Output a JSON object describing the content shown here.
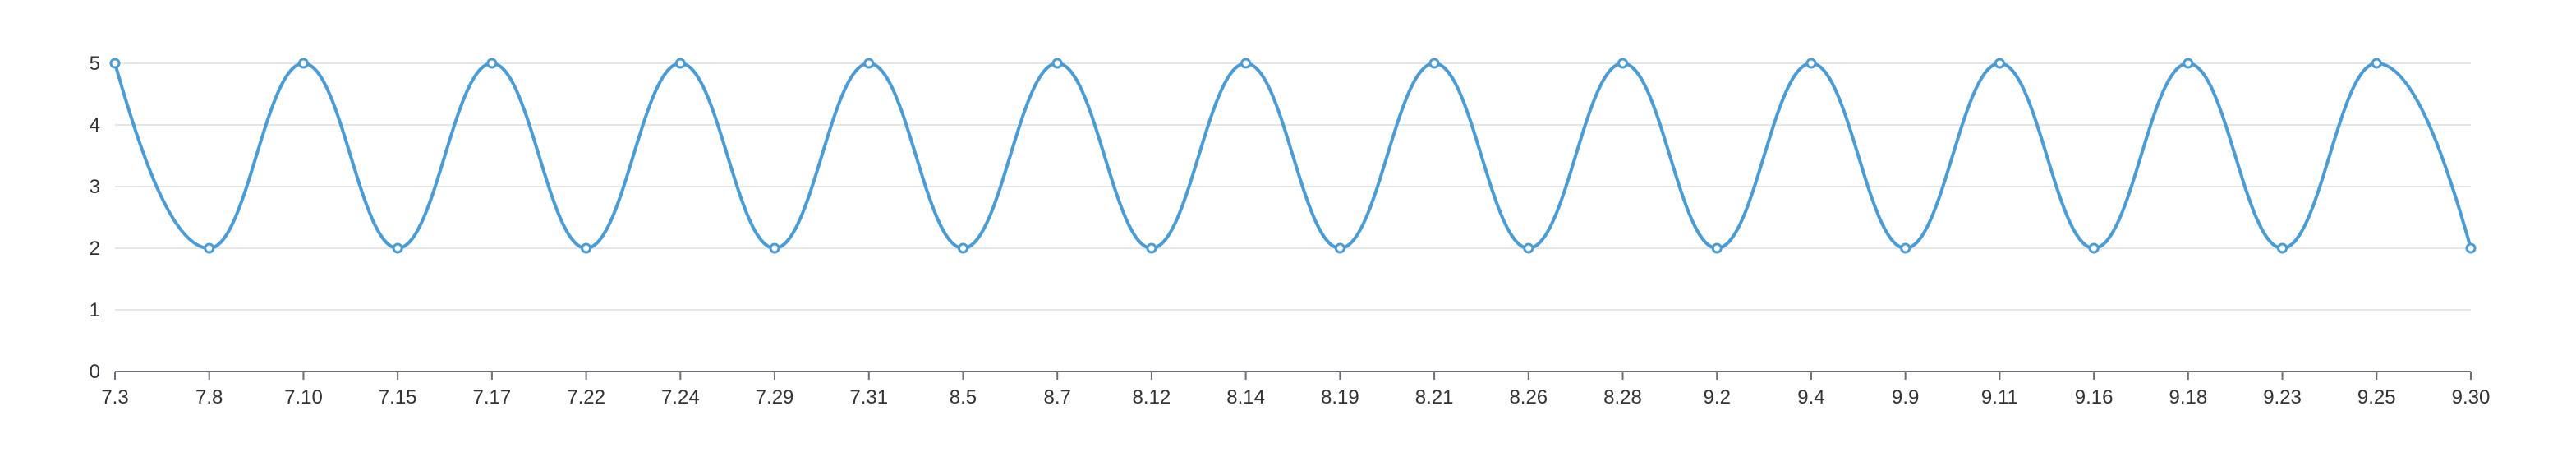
{
  "chart_data": {
    "type": "line",
    "smooth": true,
    "categories": [
      "7.3",
      "7.8",
      "7.10",
      "7.15",
      "7.17",
      "7.22",
      "7.24",
      "7.29",
      "7.31",
      "8.5",
      "8.7",
      "8.12",
      "8.14",
      "8.19",
      "8.21",
      "8.26",
      "8.28",
      "9.2",
      "9.4",
      "9.9",
      "9.11",
      "9.16",
      "9.18",
      "9.23",
      "9.25",
      "9.30"
    ],
    "series": [
      {
        "values": [
          5,
          2,
          5,
          2,
          5,
          2,
          5,
          2,
          5,
          2,
          5,
          2,
          5,
          2,
          5,
          2,
          5,
          2,
          5,
          2,
          5,
          2,
          5,
          2,
          5,
          2
        ],
        "color": "#4a9cd6"
      }
    ],
    "y_ticks": [
      "0",
      "1",
      "2",
      "3",
      "4",
      "5"
    ],
    "ylim": [
      0,
      5
    ],
    "grid": true,
    "title": "",
    "xlabel": "",
    "ylabel": ""
  }
}
